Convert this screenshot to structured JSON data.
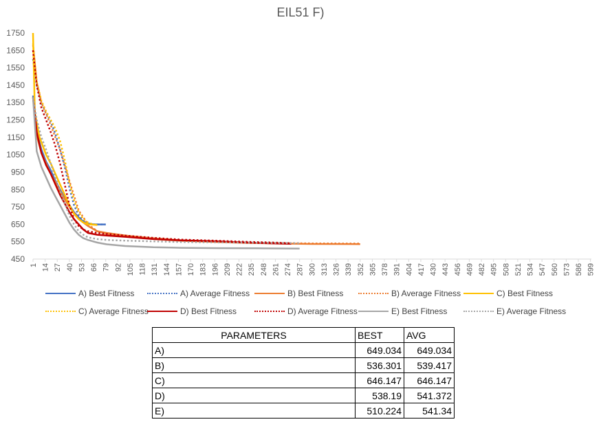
{
  "chart_data": {
    "type": "line",
    "title": "EIL51 F)",
    "xlabel": "",
    "ylabel": "",
    "ylim": [
      450,
      1750
    ],
    "yticks": [
      450,
      550,
      650,
      750,
      850,
      950,
      1050,
      1150,
      1250,
      1350,
      1450,
      1550,
      1650,
      1750
    ],
    "x_tick_labels": [
      "1",
      "14",
      "27",
      "40",
      "53",
      "66",
      "79",
      "92",
      "105",
      "118",
      "131",
      "144",
      "157",
      "170",
      "183",
      "196",
      "209",
      "222",
      "235",
      "248",
      "261",
      "274",
      "287",
      "300",
      "313",
      "326",
      "339",
      "352",
      "365",
      "378",
      "391",
      "404",
      "417",
      "430",
      "443",
      "456",
      "469",
      "482",
      "495",
      "508",
      "521",
      "534",
      "547",
      "560",
      "573",
      "586",
      "599"
    ],
    "xlim": [
      1,
      600
    ],
    "grid": false,
    "legend_position": "bottom",
    "series": [
      {
        "name": "A) Best Fitness",
        "color": "#4472C4",
        "style": "solid",
        "x": [
          1,
          5,
          10,
          15,
          20,
          25,
          30,
          35,
          40,
          45,
          50,
          55,
          60,
          65,
          70,
          75,
          79
        ],
        "y": [
          1390,
          1180,
          1080,
          1010,
          960,
          900,
          850,
          800,
          760,
          720,
          690,
          665,
          655,
          650,
          649,
          649,
          649
        ]
      },
      {
        "name": "A) Average Fitness",
        "color": "#4472C4",
        "style": "dotted",
        "x": [
          1,
          5,
          10,
          15,
          20,
          25,
          30,
          35,
          40,
          45,
          50,
          55,
          60,
          65,
          70,
          75,
          79
        ],
        "y": [
          1600,
          1450,
          1350,
          1290,
          1240,
          1170,
          1080,
          980,
          860,
          760,
          700,
          670,
          655,
          650,
          649,
          649,
          649
        ]
      },
      {
        "name": "B) Best Fitness",
        "color": "#ED7D31",
        "style": "solid",
        "x": [
          1,
          5,
          10,
          20,
          30,
          40,
          50,
          60,
          70,
          80,
          100,
          130,
          160,
          200,
          230,
          260,
          300,
          352
        ],
        "y": [
          1380,
          1160,
          1060,
          940,
          840,
          750,
          680,
          640,
          610,
          600,
          585,
          565,
          555,
          548,
          543,
          540,
          537,
          536.301
        ]
      },
      {
        "name": "B) Average Fitness",
        "color": "#ED7D31",
        "style": "dotted",
        "x": [
          1,
          5,
          10,
          20,
          30,
          40,
          50,
          60,
          70,
          80,
          100,
          130,
          160,
          200,
          230,
          260,
          300,
          352
        ],
        "y": [
          1680,
          1470,
          1350,
          1220,
          1080,
          900,
          730,
          650,
          610,
          595,
          585,
          570,
          558,
          550,
          545,
          542,
          540,
          539.417
        ]
      },
      {
        "name": "C) Best Fitness",
        "color": "#FFC000",
        "style": "solid",
        "x": [
          1,
          3,
          8,
          15,
          20,
          25,
          30,
          35,
          40,
          45,
          50,
          55,
          60,
          65,
          70
        ],
        "y": [
          1750,
          1290,
          1150,
          1050,
          1000,
          940,
          880,
          820,
          760,
          710,
          680,
          660,
          650,
          648,
          646.147
        ]
      },
      {
        "name": "C) Average Fitness",
        "color": "#FFC000",
        "style": "dotted",
        "x": [
          1,
          5,
          10,
          15,
          20,
          25,
          30,
          35,
          40,
          45,
          50,
          55,
          60,
          65,
          70
        ],
        "y": [
          1690,
          1470,
          1360,
          1300,
          1250,
          1200,
          1130,
          1020,
          890,
          790,
          720,
          680,
          660,
          650,
          646.147
        ]
      },
      {
        "name": "D) Best Fitness",
        "color": "#C00000",
        "style": "solid",
        "x": [
          1,
          5,
          10,
          15,
          20,
          25,
          30,
          35,
          40,
          45,
          50,
          55,
          60,
          70,
          80,
          100,
          130,
          160,
          200,
          230,
          260,
          278
        ],
        "y": [
          1380,
          1180,
          1060,
          990,
          940,
          880,
          820,
          770,
          720,
          680,
          650,
          620,
          600,
          590,
          585,
          578,
          565,
          558,
          552,
          545,
          540,
          538.19
        ]
      },
      {
        "name": "D) Average Fitness",
        "color": "#C00000",
        "style": "dotted",
        "x": [
          1,
          5,
          10,
          15,
          20,
          25,
          30,
          35,
          40,
          45,
          50,
          55,
          60,
          70,
          80,
          100,
          130,
          160,
          200,
          230,
          260,
          278
        ],
        "y": [
          1650,
          1450,
          1320,
          1250,
          1180,
          1100,
          1000,
          880,
          760,
          680,
          640,
          620,
          610,
          600,
          595,
          585,
          572,
          562,
          555,
          549,
          545,
          541.372
        ]
      },
      {
        "name": "E) Best Fitness",
        "color": "#A5A5A5",
        "style": "solid",
        "x": [
          1,
          5,
          10,
          15,
          20,
          25,
          30,
          35,
          40,
          45,
          50,
          55,
          60,
          70,
          80,
          100,
          130,
          160,
          200,
          240,
          287
        ],
        "y": [
          1380,
          1070,
          980,
          920,
          860,
          810,
          760,
          710,
          660,
          620,
          590,
          570,
          560,
          545,
          535,
          525,
          518,
          515,
          513,
          512,
          510.224
        ]
      },
      {
        "name": "E) Average Fitness",
        "color": "#A5A5A5",
        "style": "dotted",
        "x": [
          1,
          5,
          10,
          15,
          20,
          25,
          30,
          35,
          40,
          45,
          50,
          55,
          60,
          70,
          80,
          100,
          130,
          160,
          200,
          240,
          287
        ],
        "y": [
          1380,
          1250,
          1150,
          1080,
          1000,
          920,
          840,
          770,
          700,
          650,
          610,
          590,
          575,
          565,
          560,
          556,
          552,
          548,
          546,
          544,
          541.34
        ]
      }
    ]
  },
  "table": {
    "headers": {
      "param": "PARAMETERS",
      "best": "BEST",
      "avg": "AVG"
    },
    "rows": [
      {
        "label": "A)",
        "best": "649.034",
        "avg": "649.034"
      },
      {
        "label": "B)",
        "best": "536.301",
        "avg": "539.417"
      },
      {
        "label": "C)",
        "best": "646.147",
        "avg": "646.147"
      },
      {
        "label": "D)",
        "best": "538.19",
        "avg": "541.372"
      },
      {
        "label": "E)",
        "best": "510.224",
        "avg": "541.34"
      }
    ]
  }
}
